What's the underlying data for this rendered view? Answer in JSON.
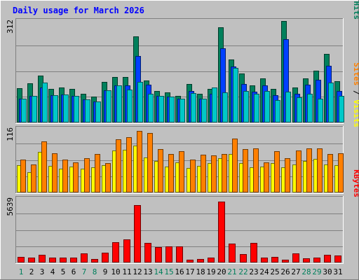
{
  "chart_data": {
    "type": "bar",
    "title": "Daily usage for March 2026",
    "categories": [
      "1",
      "2",
      "3",
      "4",
      "5",
      "6",
      "7",
      "8",
      "9",
      "10",
      "11",
      "12",
      "13",
      "14",
      "15",
      "16",
      "17",
      "18",
      "19",
      "20",
      "21",
      "22",
      "23",
      "24",
      "25",
      "26",
      "27",
      "28",
      "29",
      "30",
      "31"
    ],
    "weekend_days": [
      "1",
      "7",
      "8",
      "14",
      "15",
      "21",
      "22",
      "28",
      "29"
    ],
    "panels": [
      {
        "id": "hits-files-pages",
        "ymax_label": "312",
        "ymax": 312,
        "legend": [
          {
            "name": "Pages",
            "color": "#00c8c8"
          },
          {
            "sep": " / "
          },
          {
            "name": "Files",
            "color": "#0040ff"
          },
          {
            "sep": " / "
          },
          {
            "name": "Hits",
            "color": "#00805c"
          }
        ],
        "series": [
          {
            "name": "Hits",
            "color": "#00805c",
            "values": [
              104,
              118,
              142,
              101,
              106,
              101,
              86,
              78,
              124,
              139,
              137,
              260,
              127,
              96,
              92,
              81,
              116,
              87,
              102,
              288,
              192,
              148,
              113,
              134,
              102,
              308,
              106,
              134,
              157,
              207,
              126
            ]
          },
          {
            "name": "Files",
            "color": "#0040ff",
            "values": [
              72,
              81,
              106,
              82,
              84,
              81,
              70,
              64,
              97,
              113,
              113,
              201,
              114,
              80,
              78,
              72,
              95,
              72,
              86,
              224,
              170,
              116,
              93,
              113,
              83,
              252,
              88,
              114,
              129,
              172,
              95
            ]
          },
          {
            "name": "Pages",
            "color": "#00c8c8",
            "values": [
              72,
              81,
              120,
              82,
              84,
              81,
              70,
              64,
              97,
              113,
              100,
              124,
              88,
              80,
              78,
              72,
              90,
              72,
              106,
              92,
              166,
              96,
              88,
              96,
              68,
              94,
              76,
              86,
              72,
              120,
              80
            ]
          }
        ]
      },
      {
        "id": "visits-sites",
        "ymax_label": "116",
        "ymax": 116,
        "legend": [
          {
            "name": "Sites",
            "color": "#ff8000"
          },
          {
            "sep": " / "
          },
          {
            "name": "Visits",
            "color": "#ffff00"
          }
        ],
        "series": [
          {
            "name": "Visits",
            "color": "#ffff00",
            "values": [
              49,
              36,
              72,
              48,
              42,
              46,
              43,
              45,
              49,
              75,
              76,
              84,
              62,
              56,
              46,
              54,
              44,
              48,
              53,
              61,
              68,
              53,
              45,
              46,
              52,
              45,
              50,
              56,
              60,
              50,
              49
            ]
          },
          {
            "name": "Sites",
            "color": "#ff8000",
            "values": [
              59,
              50,
              91,
              70,
              58,
              54,
              61,
              69,
              52,
              95,
              99,
              110,
              106,
              77,
              69,
              74,
              59,
              67,
              66,
              68,
              96,
              77,
              79,
              54,
              74,
              61,
              75,
              79,
              78,
              68,
              70
            ]
          }
        ]
      },
      {
        "id": "kbytes",
        "ymax_label": "5639",
        "ymax": 5639,
        "legend": [
          {
            "name": "KBytes",
            "color": "#ff0000"
          }
        ],
        "series": [
          {
            "name": "KBytes",
            "color": "#ff0000",
            "values": [
              480,
              410,
              640,
              430,
              400,
              420,
              790,
              280,
              820,
              1770,
              2020,
              4950,
              1690,
              1340,
              1420,
              1400,
              220,
              290,
              420,
              5270,
              1610,
              720,
              1710,
              430,
              460,
              250,
              790,
              360,
              440,
              640,
              580
            ]
          }
        ]
      }
    ]
  }
}
